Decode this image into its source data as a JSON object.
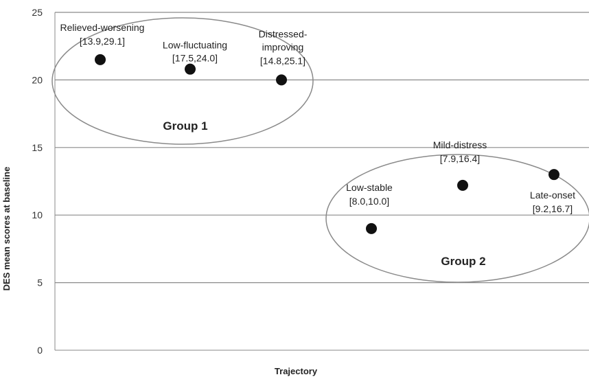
{
  "chart_data": {
    "type": "scatter",
    "title": "",
    "xlabel": "Trajectory",
    "ylabel": "DES mean  scores at baseline",
    "ylim": [
      0,
      25
    ],
    "yticks": [
      0,
      5,
      10,
      15,
      20,
      25
    ],
    "grid": "horizontal",
    "points": [
      {
        "label": "Relieved-worsening",
        "ci": "[13.9,29.1]",
        "x": 1,
        "y": 21.5
      },
      {
        "label": "Low-fluctuating",
        "ci": "[17.5,24.0]",
        "x": 2,
        "y": 20.8
      },
      {
        "label": "Distressed-improving",
        "label_lines": [
          "Distressed-",
          "improving"
        ],
        "ci": "[14.8,25.1]",
        "x": 3,
        "y": 20.0
      },
      {
        "label": "Low-stable",
        "ci": "[8.0,10.0]",
        "x": 4,
        "y": 9.0
      },
      {
        "label": "Mild-distress",
        "ci": "[7.9,16.4]",
        "x": 5,
        "y": 12.2
      },
      {
        "label": "Late-onset",
        "ci": "[9.2,16.7]",
        "x": 6,
        "y": 13.0
      }
    ],
    "groups": [
      {
        "name": "Group 1",
        "members": [
          "Relieved-worsening",
          "Low-fluctuating",
          "Distressed-improving"
        ]
      },
      {
        "name": "Group 2",
        "members": [
          "Low-stable",
          "Mild-distress",
          "Late-onset"
        ]
      }
    ]
  }
}
